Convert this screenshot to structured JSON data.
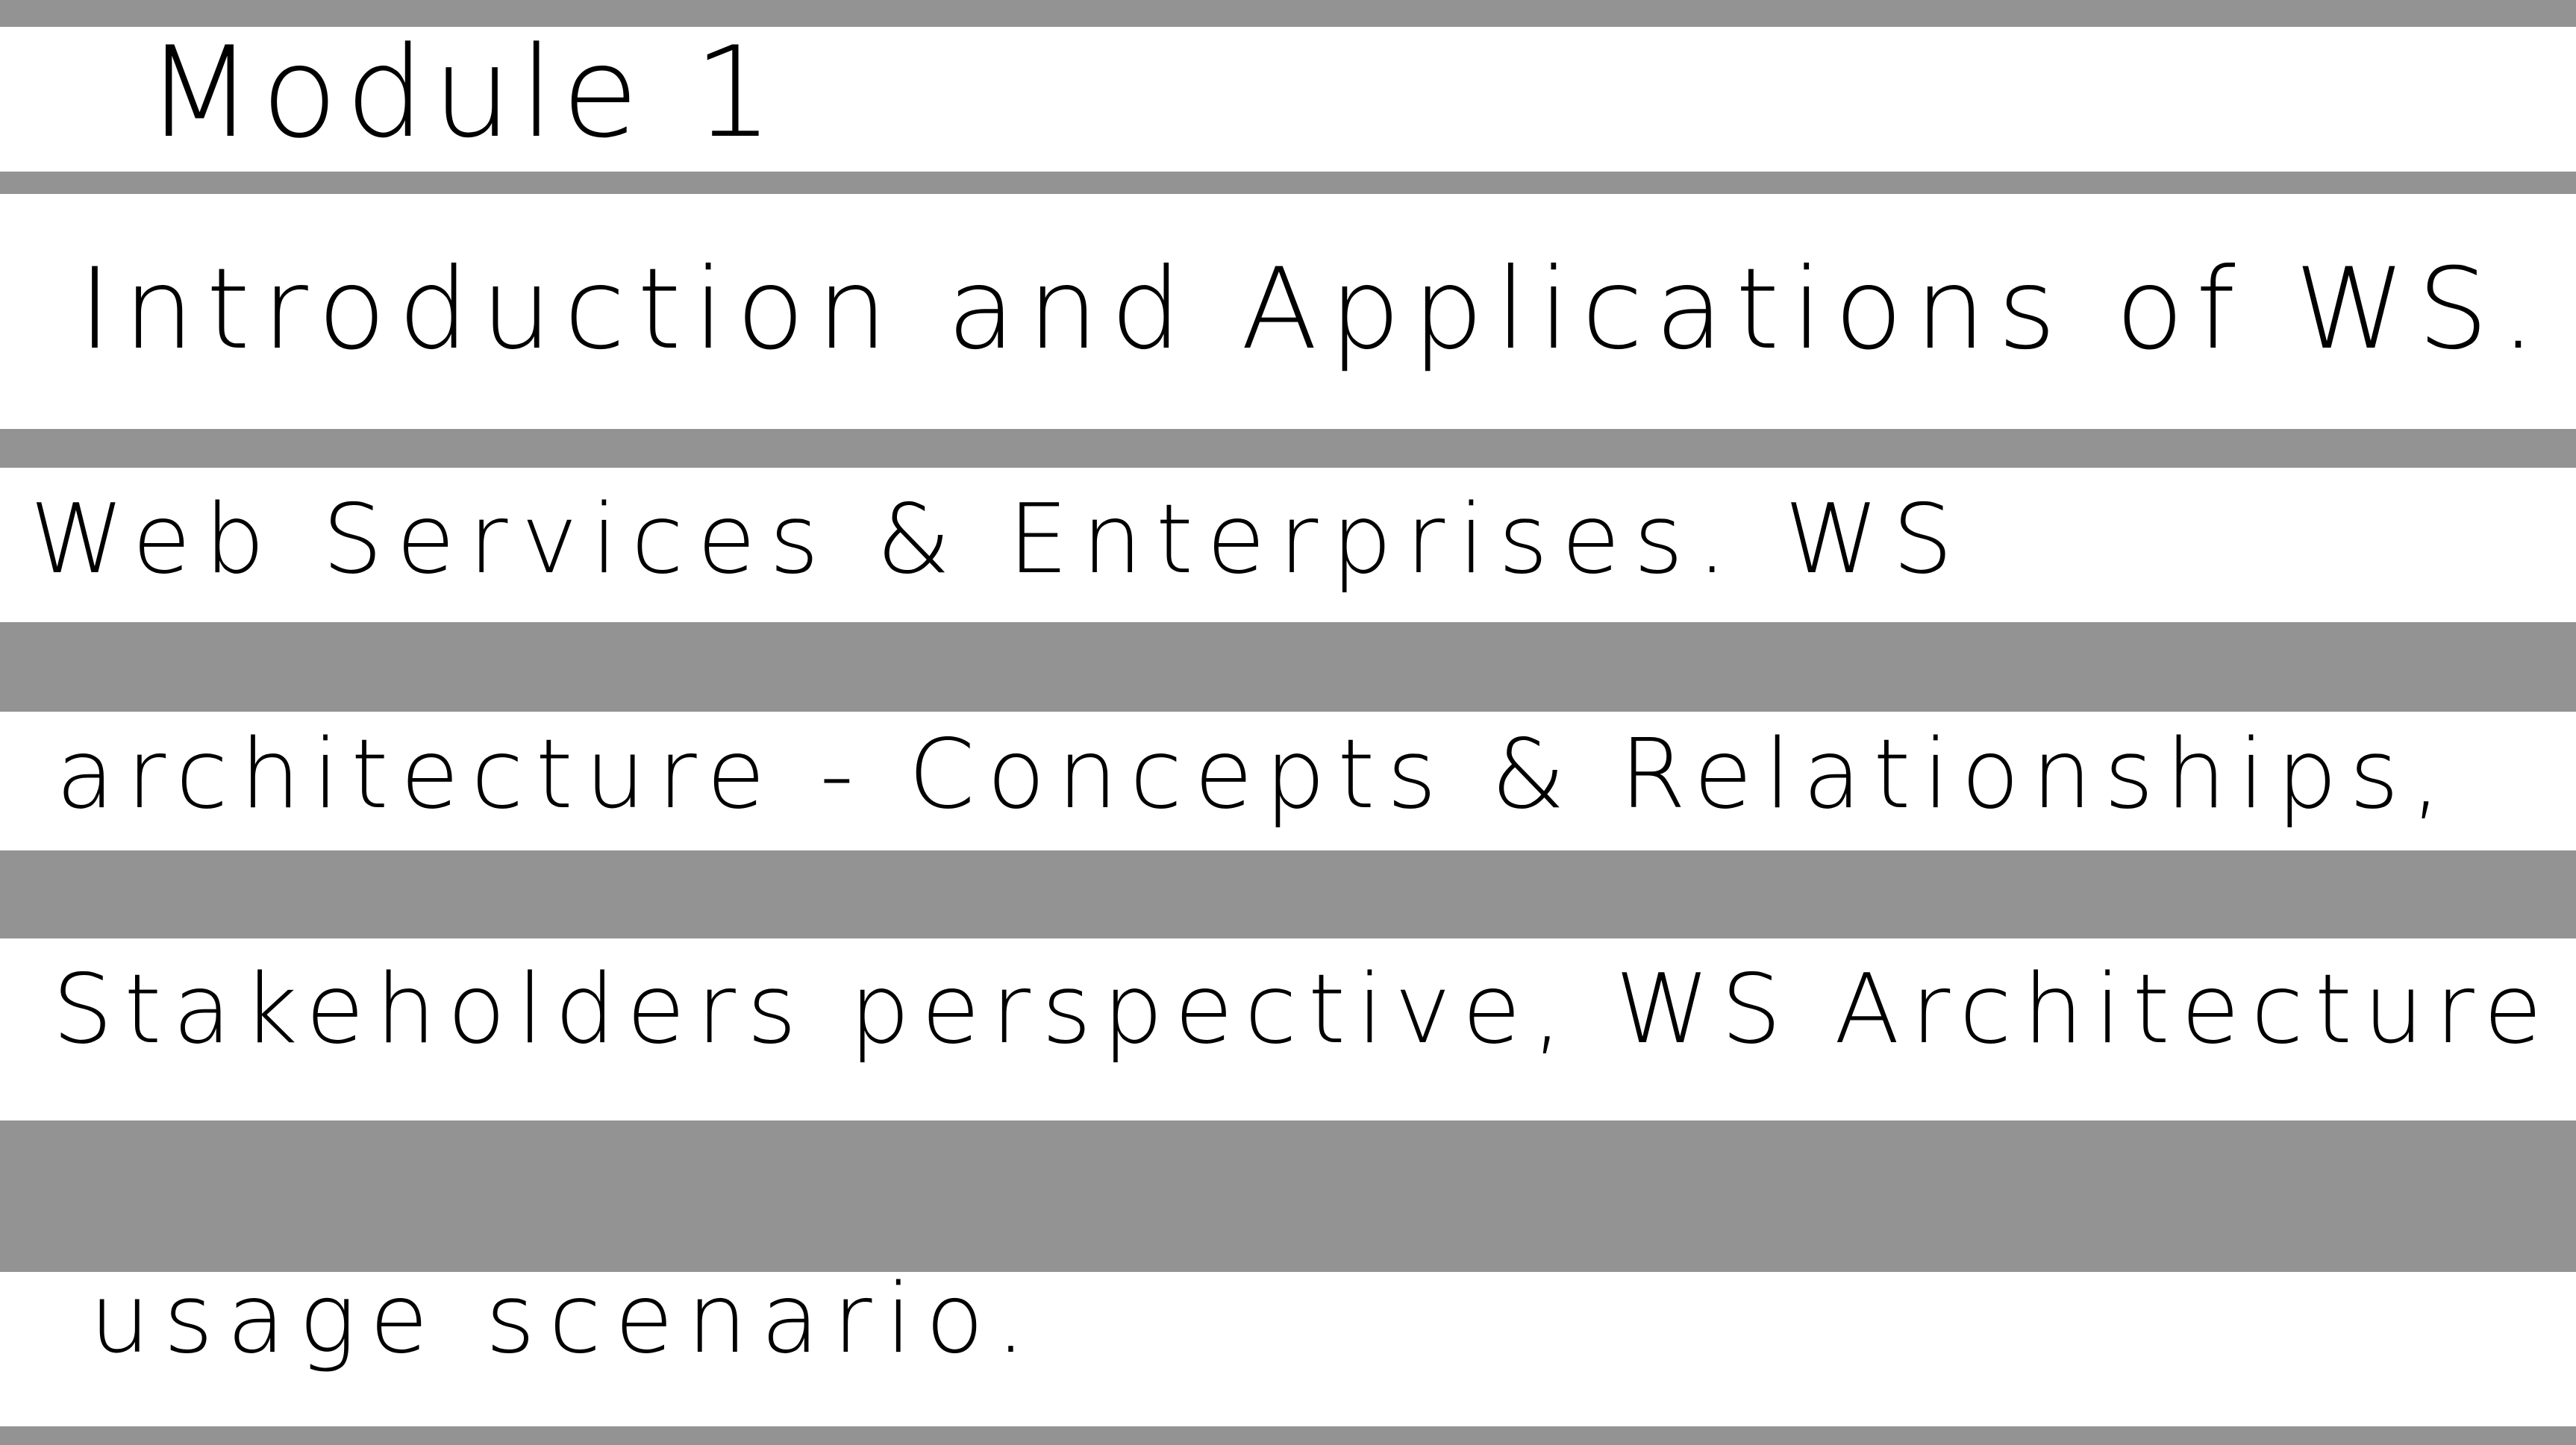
{
  "page": {
    "background_color": "#ffffff",
    "band_color": "#939393",
    "ink_color": "#000000"
  },
  "notes": {
    "title": "Module 1",
    "lines": [
      "Introduction and Applications of WS.",
      "Web Services & Enterprises. WS",
      "architecture - Concepts & Relationships,",
      "Stakeholders perspective, WS Architecture",
      "usage scenario."
    ]
  }
}
